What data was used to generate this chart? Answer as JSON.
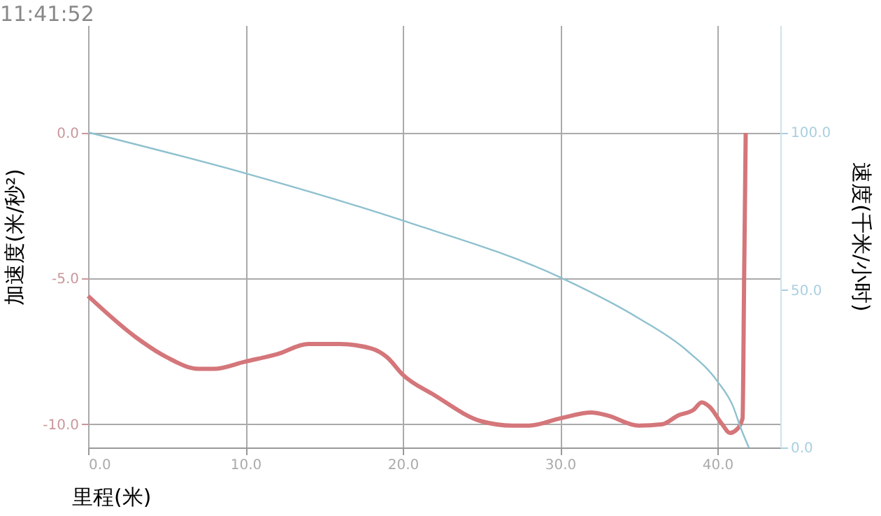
{
  "chart_data": {
    "type": "line",
    "xlabel": "里程(米)",
    "ylabel": "加速度(米/秒²)",
    "y2label": "速度(千米/小时)",
    "annotations": [
      "11:41:52"
    ],
    "xlim": [
      0,
      44
    ],
    "xticks": [
      {
        "value": 0,
        "label": "0.0"
      },
      {
        "value": 10,
        "label": "10.0"
      },
      {
        "value": 20,
        "label": "20.0"
      },
      {
        "value": 30,
        "label": "30.0"
      },
      {
        "value": 40,
        "label": "40.0"
      }
    ],
    "ylim": [
      -10.8,
      3.7
    ],
    "yticks": [
      {
        "value": -10,
        "label": "-10.0"
      },
      {
        "value": -5,
        "label": "-5.0"
      },
      {
        "value": 0,
        "label": "0.0"
      }
    ],
    "y2lim": [
      0,
      134
    ],
    "y2ticks": [
      {
        "value": 0,
        "label": "0.0"
      },
      {
        "value": 50,
        "label": "50.0"
      },
      {
        "value": 100,
        "label": "100.0"
      }
    ],
    "grid": true,
    "line_style": "solid",
    "marker": "none",
    "series": [
      {
        "color": "#d4767a",
        "x": [
          0,
          3,
          5,
          7,
          8,
          10,
          12,
          14,
          16,
          18,
          19,
          20,
          22,
          25,
          27,
          28,
          30,
          32,
          33,
          35,
          36.5,
          37.5,
          38.5,
          39,
          39.5,
          40.3,
          40.8,
          41.2,
          41.6,
          41.7,
          41.8
        ],
        "values": [
          -5.6,
          -7.0,
          -7.7,
          -8.1,
          -8.1,
          -7.85,
          -7.6,
          -7.25,
          -7.25,
          -7.4,
          -7.7,
          -8.3,
          -9.0,
          -9.9,
          -10.05,
          -10.05,
          -9.8,
          -9.6,
          -9.7,
          -10.05,
          -10.0,
          -9.7,
          -9.5,
          -9.25,
          -9.4,
          -10.0,
          -10.3,
          -10.2,
          -9.8,
          -5.0,
          0.0
        ]
      },
      {
        "color": "#8fc1cf",
        "axis": "y2",
        "x": [
          0,
          10,
          20,
          30,
          35,
          38,
          40,
          41,
          41.5,
          42
        ],
        "values": [
          100,
          87,
          72,
          54,
          41,
          31,
          21,
          13,
          6,
          0
        ]
      }
    ]
  }
}
